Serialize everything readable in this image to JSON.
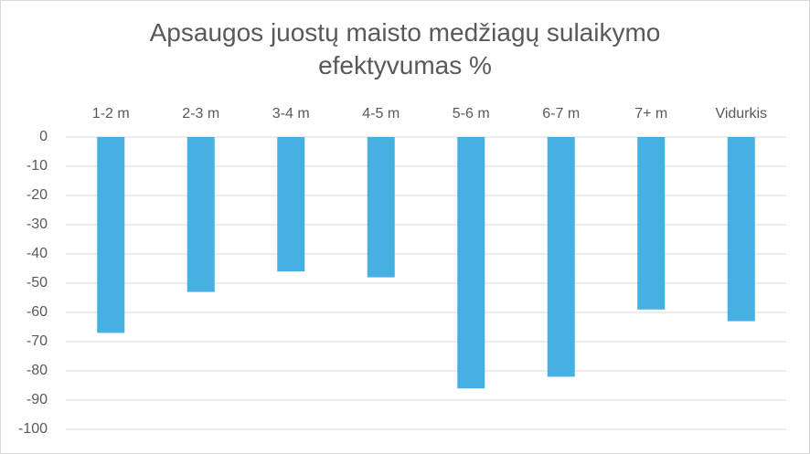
{
  "chart_data": {
    "type": "bar",
    "title": "Apsaugos juostų maisto medžiagų sulaikymo efektyvumas %",
    "categories": [
      "1-2 m",
      "2-3 m",
      "3-4 m",
      "4-5 m",
      "5-6 m",
      "6-7 m",
      "7+ m",
      "Vidurkis"
    ],
    "values": [
      -67,
      -53,
      -46,
      -48,
      -86,
      -82,
      -59,
      -63
    ],
    "color": "#45b0e1",
    "ylim": [
      -100,
      0
    ],
    "yticks": [
      0,
      -10,
      -20,
      -30,
      -40,
      -50,
      -60,
      -70,
      -80,
      -90,
      -100
    ],
    "grid": true
  }
}
